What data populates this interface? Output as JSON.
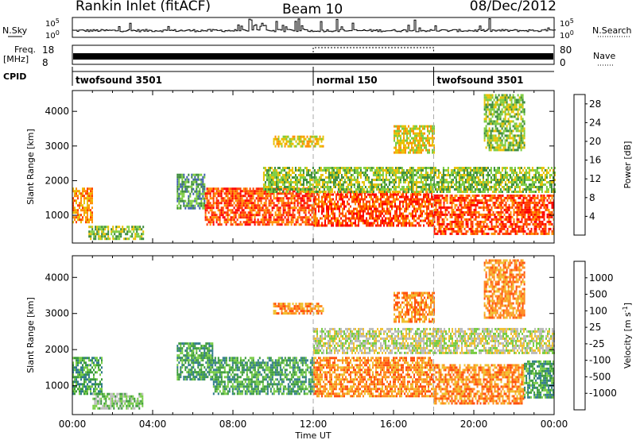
{
  "header": {
    "radar": "Rankin Inlet (fitACF)",
    "beam": "Beam 10",
    "date": "08/Dec/2012"
  },
  "status": {
    "nsky_label": "N.Sky",
    "nsearch_label": "N.Search",
    "freq_label": "Freq.",
    "freq_unit": "[MHz]",
    "nave_label": "Nave",
    "cpid_label": "CPID",
    "count_top": "10^5",
    "count_bottom": "10^0",
    "freq_top": "18",
    "freq_bottom": "8",
    "nave_top": "80",
    "nave_bottom": "0",
    "modes": [
      {
        "name": "twofsound 3501",
        "start_hour": 0
      },
      {
        "name": "normal 150",
        "start_hour": 12
      },
      {
        "name": "twofsound 3501",
        "start_hour": 18
      }
    ]
  },
  "axes": {
    "xlabel": "Time UT",
    "ylabel": "Slant Range [km]"
  },
  "chart_data": [
    {
      "type": "heatmap",
      "name": "power",
      "x_unit": "hours UT",
      "xlim": [
        0,
        24
      ],
      "ylim": [
        200,
        4600
      ],
      "x_ticks": [
        "00:00",
        "04:00",
        "08:00",
        "12:00",
        "16:00",
        "20:00",
        "00:00"
      ],
      "y_ticks": [
        1000,
        2000,
        3000,
        4000
      ],
      "colorbar": {
        "label": "Power [dB]",
        "ticks": [
          4,
          8,
          12,
          16,
          20,
          24,
          28
        ],
        "range": [
          0,
          30
        ],
        "colors": [
          "#0000ff",
          "#3f5fb0",
          "#3a8a3a",
          "#7ccc40",
          "#e8c000",
          "#ff9000",
          "#ff4000",
          "#ff0000"
        ]
      },
      "regions": [
        {
          "x": [
            0.0,
            1.0
          ],
          "y": [
            800,
            1800
          ],
          "value": 20
        },
        {
          "x": [
            0.8,
            3.5
          ],
          "y": [
            350,
            700
          ],
          "value": 14
        },
        {
          "x": [
            5.2,
            6.6
          ],
          "y": [
            1200,
            2200
          ],
          "value": 10
        },
        {
          "x": [
            6.6,
            12.0
          ],
          "y": [
            700,
            1800
          ],
          "value": 26
        },
        {
          "x": [
            12.0,
            18.0
          ],
          "y": [
            700,
            1700
          ],
          "value": 25
        },
        {
          "x": [
            18.0,
            24.0
          ],
          "y": [
            500,
            1600
          ],
          "value": 27
        },
        {
          "x": [
            9.5,
            24.0
          ],
          "y": [
            1700,
            2400
          ],
          "value": 14
        },
        {
          "x": [
            10.0,
            12.5
          ],
          "y": [
            3000,
            3300
          ],
          "value": 17
        },
        {
          "x": [
            16.0,
            18.0
          ],
          "y": [
            2800,
            3600
          ],
          "value": 19
        },
        {
          "x": [
            20.5,
            22.5
          ],
          "y": [
            2900,
            4500
          ],
          "value": 13
        }
      ]
    },
    {
      "type": "heatmap",
      "name": "velocity",
      "x_unit": "hours UT",
      "xlim": [
        0,
        24
      ],
      "ylim": [
        200,
        4600
      ],
      "x_ticks": [
        "00:00",
        "04:00",
        "08:00",
        "12:00",
        "16:00",
        "20:00",
        "00:00"
      ],
      "y_ticks": [
        1000,
        2000,
        3000,
        4000
      ],
      "colorbar": {
        "label": "Velocity [m s^-1]",
        "ticks": [
          1000,
          500,
          100,
          25,
          -25,
          -100,
          -500,
          -1000
        ],
        "colors": [
          "#1a3fb0",
          "#2f7a8a",
          "#3a9a3a",
          "#77cc44",
          "#bbbbbb",
          "#f0c030",
          "#ff8c20",
          "#ff5010",
          "#ff0000"
        ]
      },
      "regions": [
        {
          "x": [
            0.0,
            1.5
          ],
          "y": [
            800,
            1800
          ],
          "value": 150
        },
        {
          "x": [
            1.0,
            3.5
          ],
          "y": [
            350,
            800
          ],
          "value": 80
        },
        {
          "x": [
            5.2,
            7.0
          ],
          "y": [
            1200,
            2200
          ],
          "value": 400
        },
        {
          "x": [
            7.0,
            12.0
          ],
          "y": [
            800,
            1800
          ],
          "value": 300
        },
        {
          "x": [
            12.0,
            18.0
          ],
          "y": [
            700,
            1800
          ],
          "value": -150
        },
        {
          "x": [
            18.0,
            22.5
          ],
          "y": [
            500,
            1600
          ],
          "value": -400
        },
        {
          "x": [
            22.5,
            24.0
          ],
          "y": [
            700,
            1700
          ],
          "value": 200
        },
        {
          "x": [
            12.0,
            24.0
          ],
          "y": [
            1900,
            2600
          ],
          "value": 0
        },
        {
          "x": [
            10.0,
            12.5
          ],
          "y": [
            3000,
            3300
          ],
          "value": -300
        },
        {
          "x": [
            16.0,
            18.0
          ],
          "y": [
            2800,
            3600
          ],
          "value": -300
        },
        {
          "x": [
            20.5,
            22.5
          ],
          "y": [
            2900,
            4500
          ],
          "value": -200
        }
      ]
    }
  ]
}
